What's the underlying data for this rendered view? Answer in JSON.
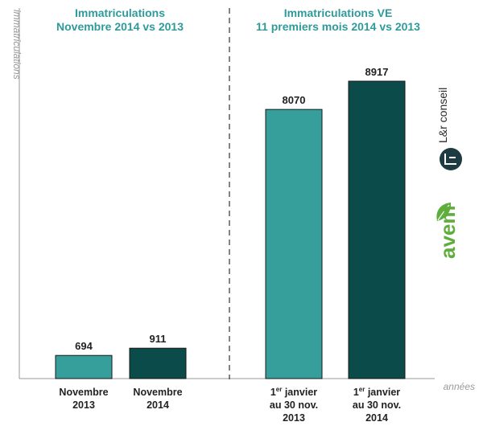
{
  "chart_data": {
    "type": "bar",
    "ylabel": "immatriculations",
    "xlabel": "années",
    "colors": {
      "2013": "#369e9b",
      "2014": "#0b4b49",
      "title": "#2e9a9a"
    },
    "panels": [
      {
        "title_lines": [
          "Immatriculations",
          "Novembre 2014 vs 2013"
        ],
        "bars": [
          {
            "label_lines": [
              "Novembre",
              "2013"
            ],
            "value": 694,
            "series": "2013"
          },
          {
            "label_lines": [
              "Novembre",
              "2014"
            ],
            "value": 911,
            "series": "2014"
          }
        ]
      },
      {
        "title_lines": [
          "Immatriculations VE",
          "11 premiers mois 2014 vs 2013"
        ],
        "bars": [
          {
            "label_lines": [
              "1er janvier",
              "au 30 nov.",
              "2013"
            ],
            "value": 8070,
            "series": "2013"
          },
          {
            "label_lines": [
              "1er janvier",
              "au 30 nov.",
              "2014"
            ],
            "value": 8917,
            "series": "2014"
          }
        ]
      }
    ]
  },
  "logos": {
    "lr_conseil": {
      "text": "L&r conseil",
      "icon": "lr-conseil-logo-icon"
    },
    "avem": {
      "text": "avem",
      "icon": "leaf-icon",
      "color": "#5fae3c"
    }
  }
}
